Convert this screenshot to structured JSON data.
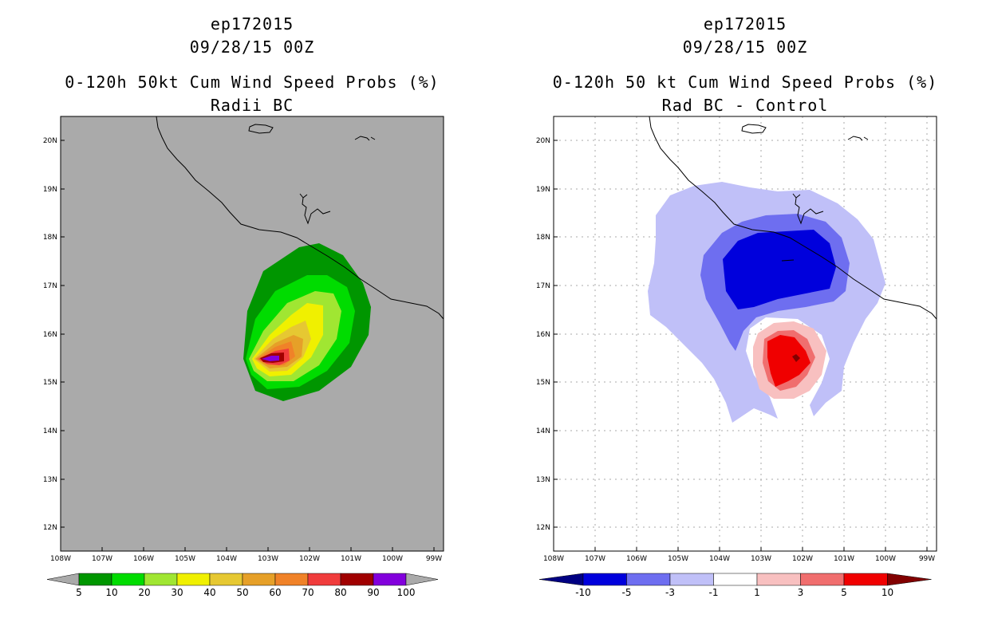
{
  "left": {
    "line1": "ep172015",
    "line2": "09/28/15 00Z",
    "line3": "0-120h 50kt Cum Wind Speed Probs (%)",
    "line4": "Radii BC",
    "colorbar_labels": [
      "5",
      "10",
      "20",
      "30",
      "40",
      "50",
      "60",
      "70",
      "80",
      "90",
      "100"
    ],
    "colorbar_colors": [
      "#009600",
      "#00dc00",
      "#a0e632",
      "#f0f000",
      "#e6c832",
      "#e6a028",
      "#f08228",
      "#f03c3c",
      "#a00000",
      "#8200dc"
    ],
    "background_color": "#aaaaaa"
  },
  "right": {
    "line1": "ep172015",
    "line2": "09/28/15 00Z",
    "line3": "0-120h 50 kt Cum Wind Speed Probs (%)",
    "line4": "Rad BC - Control",
    "colorbar_labels": [
      "-10",
      "-5",
      "-3",
      "-1",
      "1",
      "3",
      "5",
      "10"
    ],
    "colorbar_colors": [
      "#0000dc",
      "#6e6ef0",
      "#c0c0f8",
      "#ffffff",
      "#f8c0c0",
      "#f06e6e",
      "#f00000"
    ],
    "arrow_colors": [
      "#000082",
      "#820000"
    ]
  },
  "axes": {
    "lat_labels": [
      "20N",
      "19N",
      "18N",
      "17N",
      "16N",
      "15N",
      "14N",
      "13N",
      "12N"
    ],
    "lon_labels": [
      "108W",
      "107W",
      "106W",
      "105W",
      "104W",
      "103W",
      "102W",
      "101W",
      "100W",
      "99W"
    ]
  }
}
